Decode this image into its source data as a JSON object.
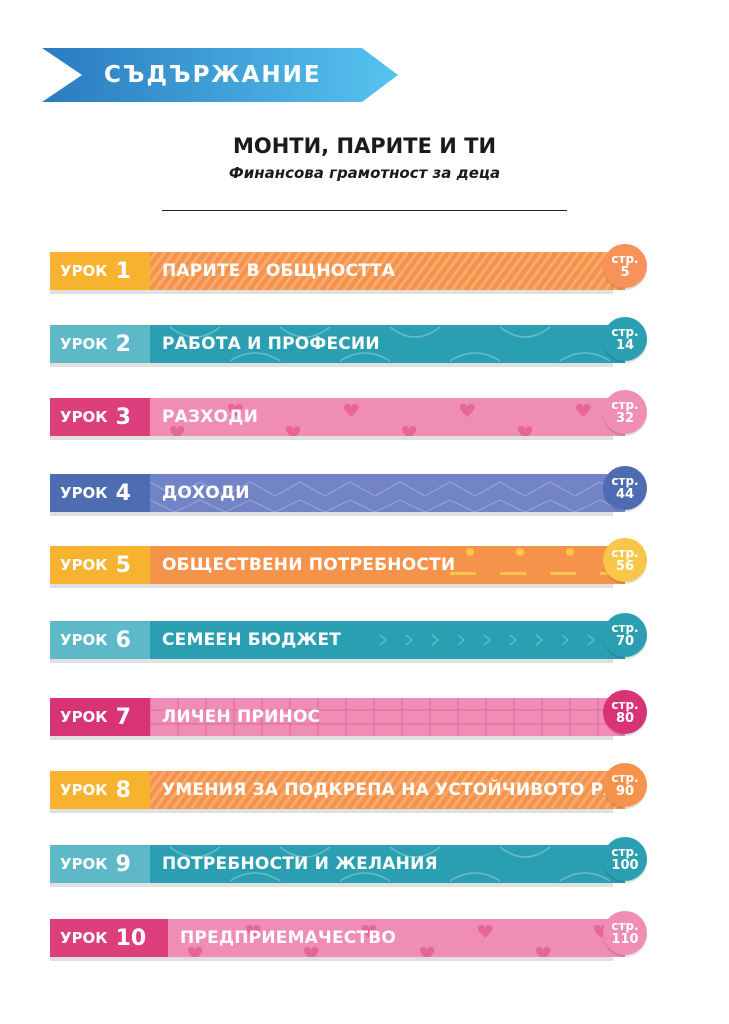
{
  "header": {
    "banner": "СЪДЪРЖАНИЕ",
    "title": "МОНТИ, ПАРИТЕ И ТИ",
    "subtitle": "Финансова грамотност за деца"
  },
  "lessons": [
    {
      "word": "УРОК",
      "num": "1",
      "title": "ПАРИТЕ В ОБЩНОСТТА",
      "p": "стр.",
      "page": "5",
      "tag": "#f7b230",
      "bar": "#f6934a",
      "badge": "#f7935a",
      "pattern": "stripes"
    },
    {
      "word": "УРОК",
      "num": "2",
      "title": "РАБОТА И ПРОФЕСИИ",
      "p": "стр.",
      "page": "14",
      "tag": "#5db9c8",
      "bar": "#2a9fb1",
      "badge": "#2a9fb1",
      "pattern": "arcs"
    },
    {
      "word": "УРОК",
      "num": "3",
      "title": "РАЗХОДИ",
      "p": "стр.",
      "page": "32",
      "tag": "#dd3f7d",
      "bar": "#f08db4",
      "badge": "#f08db4",
      "pattern": "hearts"
    },
    {
      "word": "УРОК",
      "num": "4",
      "title": "ДОХОДИ",
      "p": "стр.",
      "page": "44",
      "tag": "#4e6cb2",
      "bar": "#7284c6",
      "badge": "#4e6cb2",
      "pattern": "zigzag"
    },
    {
      "word": "УРОК",
      "num": "5",
      "title": "ОБЩЕСТВЕНИ ПОТРЕБНОСТИ",
      "p": "стр.",
      "page": "56",
      "tag": "#f7b230",
      "bar": "#f6934a",
      "badge": "#f9c64a",
      "pattern": "dots"
    },
    {
      "word": "УРОК",
      "num": "6",
      "title": "СЕМЕЕН БЮДЖЕТ",
      "p": "стр.",
      "page": "70",
      "tag": "#5db9c8",
      "bar": "#2a9fb1",
      "badge": "#2a9fb1",
      "pattern": "chevrons"
    },
    {
      "word": "УРОК",
      "num": "7",
      "title": "ЛИЧЕН ПРИНОС",
      "p": "стр.",
      "page": "80",
      "tag": "#d83375",
      "bar": "#f08db4",
      "badge": "#d83375",
      "pattern": "grid"
    },
    {
      "word": "УРОК",
      "num": "8",
      "title": "УМЕНИЯ ЗА ПОДКРЕПА НА УСТОЙЧИВОТО РАЗВИТИЕ",
      "p": "стр.",
      "page": "90",
      "tag": "#f7b230",
      "bar": "#f6934a",
      "badge": "#f6934a",
      "pattern": "stripes"
    },
    {
      "word": "УРОК",
      "num": "9",
      "title": "ПОТРЕБНОСТИ И ЖЕЛАНИЯ",
      "p": "стр.",
      "page": "100",
      "tag": "#5db9c8",
      "bar": "#2a9fb1",
      "badge": "#2a9fb1",
      "pattern": "arcs"
    },
    {
      "word": "УРОК",
      "num": "10",
      "title": "ПРЕДПРИЕМАЧЕСТВО",
      "p": "стр.",
      "page": "110",
      "tag": "#dd3f7d",
      "bar": "#f08db4",
      "badge": "#f08db4",
      "pattern": "hearts"
    }
  ]
}
